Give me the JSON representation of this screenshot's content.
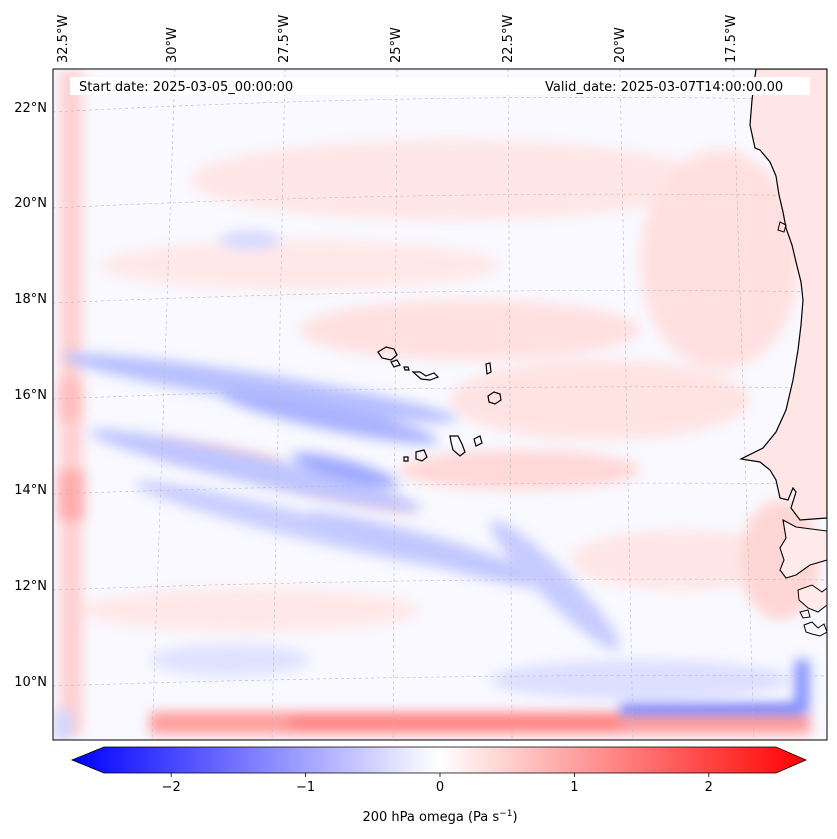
{
  "info": {
    "start_date": "Start date: 2025-03-05_00:00:00",
    "valid_date": "Valid_date: 2025-03-07T14:00:00.00"
  },
  "map": {
    "lon_labels": [
      "32.5°W",
      "30°W",
      "27.5°W",
      "25°W",
      "22.5°W",
      "20°W",
      "17.5°W"
    ],
    "lat_labels": [
      "22°N",
      "20°N",
      "18°N",
      "16°N",
      "14°N",
      "12°N",
      "10°N"
    ],
    "islands": [
      "santo-antao",
      "sao-vicente",
      "santa-luzia",
      "sao-nicolau",
      "sal",
      "boa-vista",
      "maio",
      "santiago",
      "fogo",
      "brava"
    ]
  },
  "colorbar": {
    "label": "200 hPa omega (Pa s",
    "label_sup": "−1",
    "label_close": ")",
    "ticks": [
      "−2",
      "−1",
      "0",
      "1",
      "2"
    ],
    "tick_values": [
      -2,
      -1,
      0,
      1,
      2
    ],
    "range": [
      -2.5,
      2.5
    ],
    "cmap_low": "#0000ff",
    "cmap_mid": "#ffffff",
    "cmap_high": "#ff0000"
  },
  "colors": {
    "positive_tint": "#ffdede",
    "negative_tint": "#d8dcff",
    "gridline": "#b0b0b0",
    "coastline": "#000000"
  }
}
